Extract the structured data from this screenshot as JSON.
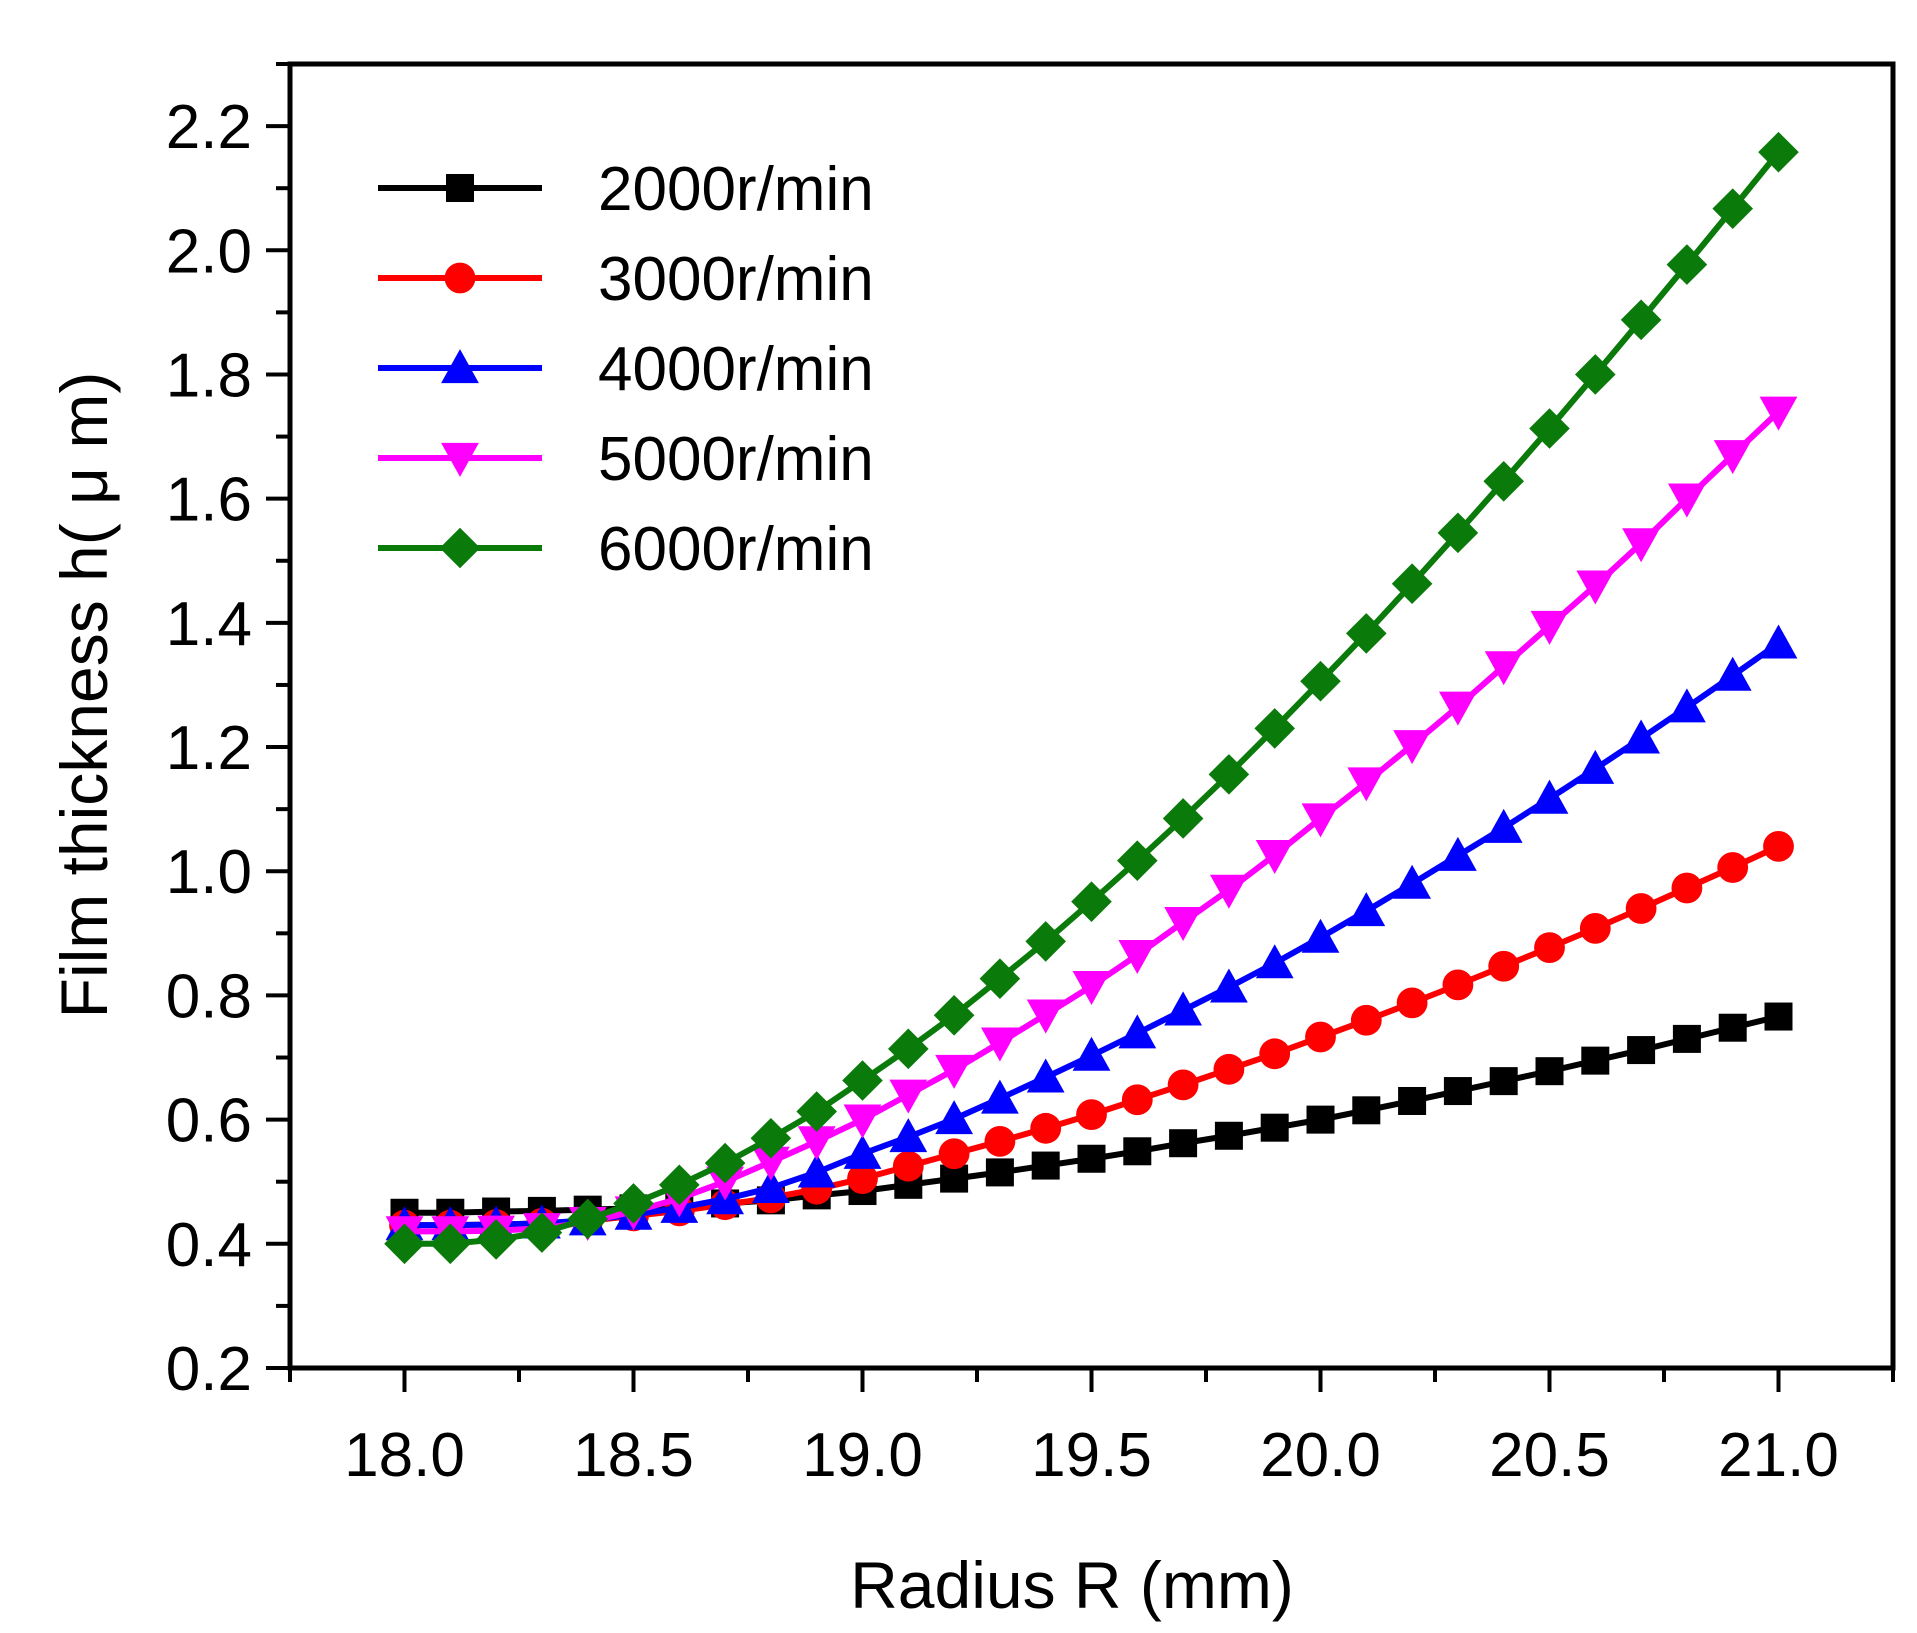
{
  "chart_data": {
    "type": "line",
    "xlabel": "Radius R (mm)",
    "ylabel": "Film thickness h( μ m)",
    "xlim": [
      17.75,
      21.25
    ],
    "ylim": [
      0.2,
      2.3
    ],
    "xticks": [
      18.0,
      18.5,
      19.0,
      19.5,
      20.0,
      20.5,
      21.0
    ],
    "xtick_labels": [
      "18.0",
      "18.5",
      "19.0",
      "19.5",
      "20.0",
      "20.5",
      "21.0"
    ],
    "yticks": [
      0.2,
      0.4,
      0.6,
      0.8,
      1.0,
      1.2,
      1.4,
      1.6,
      1.8,
      2.0,
      2.2
    ],
    "ytick_labels": [
      "0.2",
      "0.4",
      "0.6",
      "0.8",
      "1.0",
      "1.2",
      "1.4",
      "1.6",
      "1.8",
      "2.0",
      "2.2"
    ],
    "grid": false,
    "legend_position": "top-left",
    "x": [
      18.0,
      18.1,
      18.2,
      18.3,
      18.4,
      18.5,
      18.6,
      18.7,
      18.8,
      18.9,
      19.0,
      19.1,
      19.2,
      19.3,
      19.4,
      19.5,
      19.6,
      19.7,
      19.8,
      19.9,
      20.0,
      20.1,
      20.2,
      20.3,
      20.4,
      20.5,
      20.6,
      20.7,
      20.8,
      20.9,
      21.0
    ],
    "series": [
      {
        "name": "2000r/min",
        "color": "#000000",
        "marker": "square",
        "values": [
          0.45,
          0.45,
          0.452,
          0.453,
          0.455,
          0.457,
          0.46,
          0.465,
          0.47,
          0.478,
          0.485,
          0.495,
          0.505,
          0.515,
          0.526,
          0.537,
          0.549,
          0.562,
          0.574,
          0.587,
          0.6,
          0.615,
          0.63,
          0.646,
          0.662,
          0.678,
          0.695,
          0.712,
          0.73,
          0.748,
          0.766
        ]
      },
      {
        "name": "3000r/min",
        "color": "#ff0000",
        "marker": "circle",
        "values": [
          0.43,
          0.43,
          0.431,
          0.433,
          0.437,
          0.445,
          0.453,
          0.463,
          0.474,
          0.488,
          0.505,
          0.525,
          0.545,
          0.565,
          0.586,
          0.608,
          0.632,
          0.656,
          0.681,
          0.706,
          0.733,
          0.76,
          0.788,
          0.817,
          0.847,
          0.877,
          0.908,
          0.94,
          0.973,
          1.006,
          1.04
        ]
      },
      {
        "name": "4000r/min",
        "color": "#0000ff",
        "marker": "triangle-up",
        "values": [
          0.43,
          0.43,
          0.431,
          0.433,
          0.438,
          0.447,
          0.458,
          0.472,
          0.49,
          0.515,
          0.545,
          0.572,
          0.601,
          0.634,
          0.668,
          0.703,
          0.739,
          0.776,
          0.813,
          0.852,
          0.893,
          0.936,
          0.98,
          1.025,
          1.07,
          1.117,
          1.165,
          1.214,
          1.264,
          1.315,
          1.367
        ]
      },
      {
        "name": "5000r/min",
        "color": "#ff00ff",
        "marker": "triangle-down",
        "values": [
          0.42,
          0.42,
          0.421,
          0.425,
          0.435,
          0.452,
          0.473,
          0.5,
          0.532,
          0.565,
          0.6,
          0.64,
          0.68,
          0.724,
          0.769,
          0.815,
          0.865,
          0.918,
          0.97,
          1.026,
          1.085,
          1.143,
          1.203,
          1.265,
          1.33,
          1.395,
          1.46,
          1.528,
          1.6,
          1.67,
          1.74
        ]
      },
      {
        "name": "6000r/min",
        "color": "#0a7a0a",
        "marker": "diamond",
        "values": [
          0.4,
          0.4,
          0.407,
          0.418,
          0.44,
          0.465,
          0.495,
          0.53,
          0.57,
          0.613,
          0.663,
          0.714,
          0.768,
          0.827,
          0.887,
          0.951,
          1.017,
          1.085,
          1.156,
          1.23,
          1.306,
          1.383,
          1.463,
          1.545,
          1.628,
          1.713,
          1.8,
          1.888,
          1.977,
          2.067,
          2.158
        ]
      }
    ]
  }
}
